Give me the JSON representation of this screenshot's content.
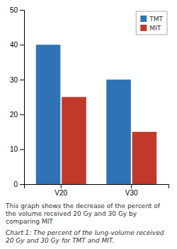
{
  "chart_data": {
    "type": "bar",
    "categories": [
      "V20",
      "V30"
    ],
    "series": [
      {
        "name": "TMT",
        "color": "#2e74b5",
        "values": [
          40,
          30
        ]
      },
      {
        "name": "MIT",
        "color": "#c0392b",
        "values": [
          25,
          15
        ]
      }
    ],
    "ylim": [
      0,
      50
    ],
    "yticks": [
      0,
      10,
      20,
      30,
      40,
      50
    ],
    "grid": false,
    "legend": "upper right",
    "annotations": [
      "This graph shows the decrease of the percent of the volume received 20 Gy and 30 Gy by comparing MIT",
      "Chart 1: The percent of the lung-volume received 20 Gy and 30 Gy for TMT and MIT."
    ]
  }
}
